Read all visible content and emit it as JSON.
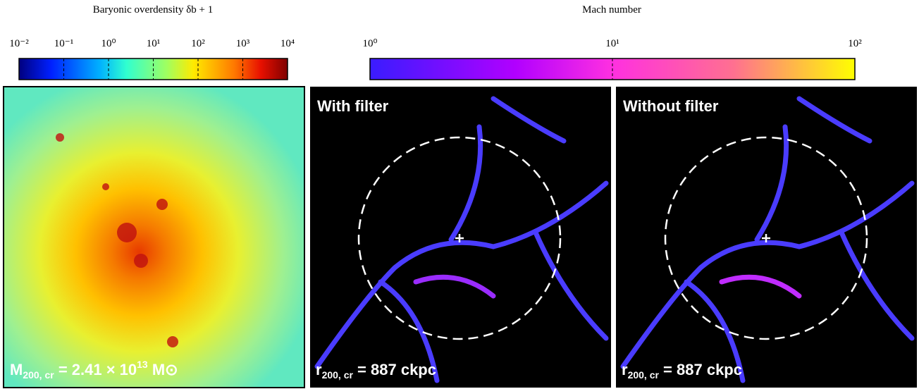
{
  "colorbars": [
    {
      "title": "Baryonic overdensity δb + 1",
      "scale": "log",
      "ticks": [
        {
          "value": 0.01,
          "label": "10⁻²"
        },
        {
          "value": 0.1,
          "label": "10⁻¹"
        },
        {
          "value": 1,
          "label": "10⁰"
        },
        {
          "value": 10,
          "label": "10¹"
        },
        {
          "value": 100,
          "label": "10²"
        },
        {
          "value": 1000,
          "label": "10³"
        },
        {
          "value": 10000,
          "label": "10⁴"
        }
      ]
    },
    {
      "title": "Mach number",
      "scale": "log",
      "ticks": [
        {
          "value": 1,
          "label": "10⁰"
        },
        {
          "value": 10,
          "label": "10¹"
        },
        {
          "value": 100,
          "label": "10²"
        }
      ]
    }
  ],
  "panels": [
    {
      "label": {
        "main": "M",
        "sub": "200, cr",
        "text": " = 2.41 × 10",
        "sup": "13",
        "unit": " M⊙"
      }
    },
    {
      "title": "With filter",
      "label": {
        "main": "r",
        "sub": "200, cr",
        "text": " = 887 ckpc"
      }
    },
    {
      "title": "Without filter",
      "label": {
        "main": "r",
        "sub": "200, cr",
        "text": " = 887 ckpc"
      }
    }
  ]
}
